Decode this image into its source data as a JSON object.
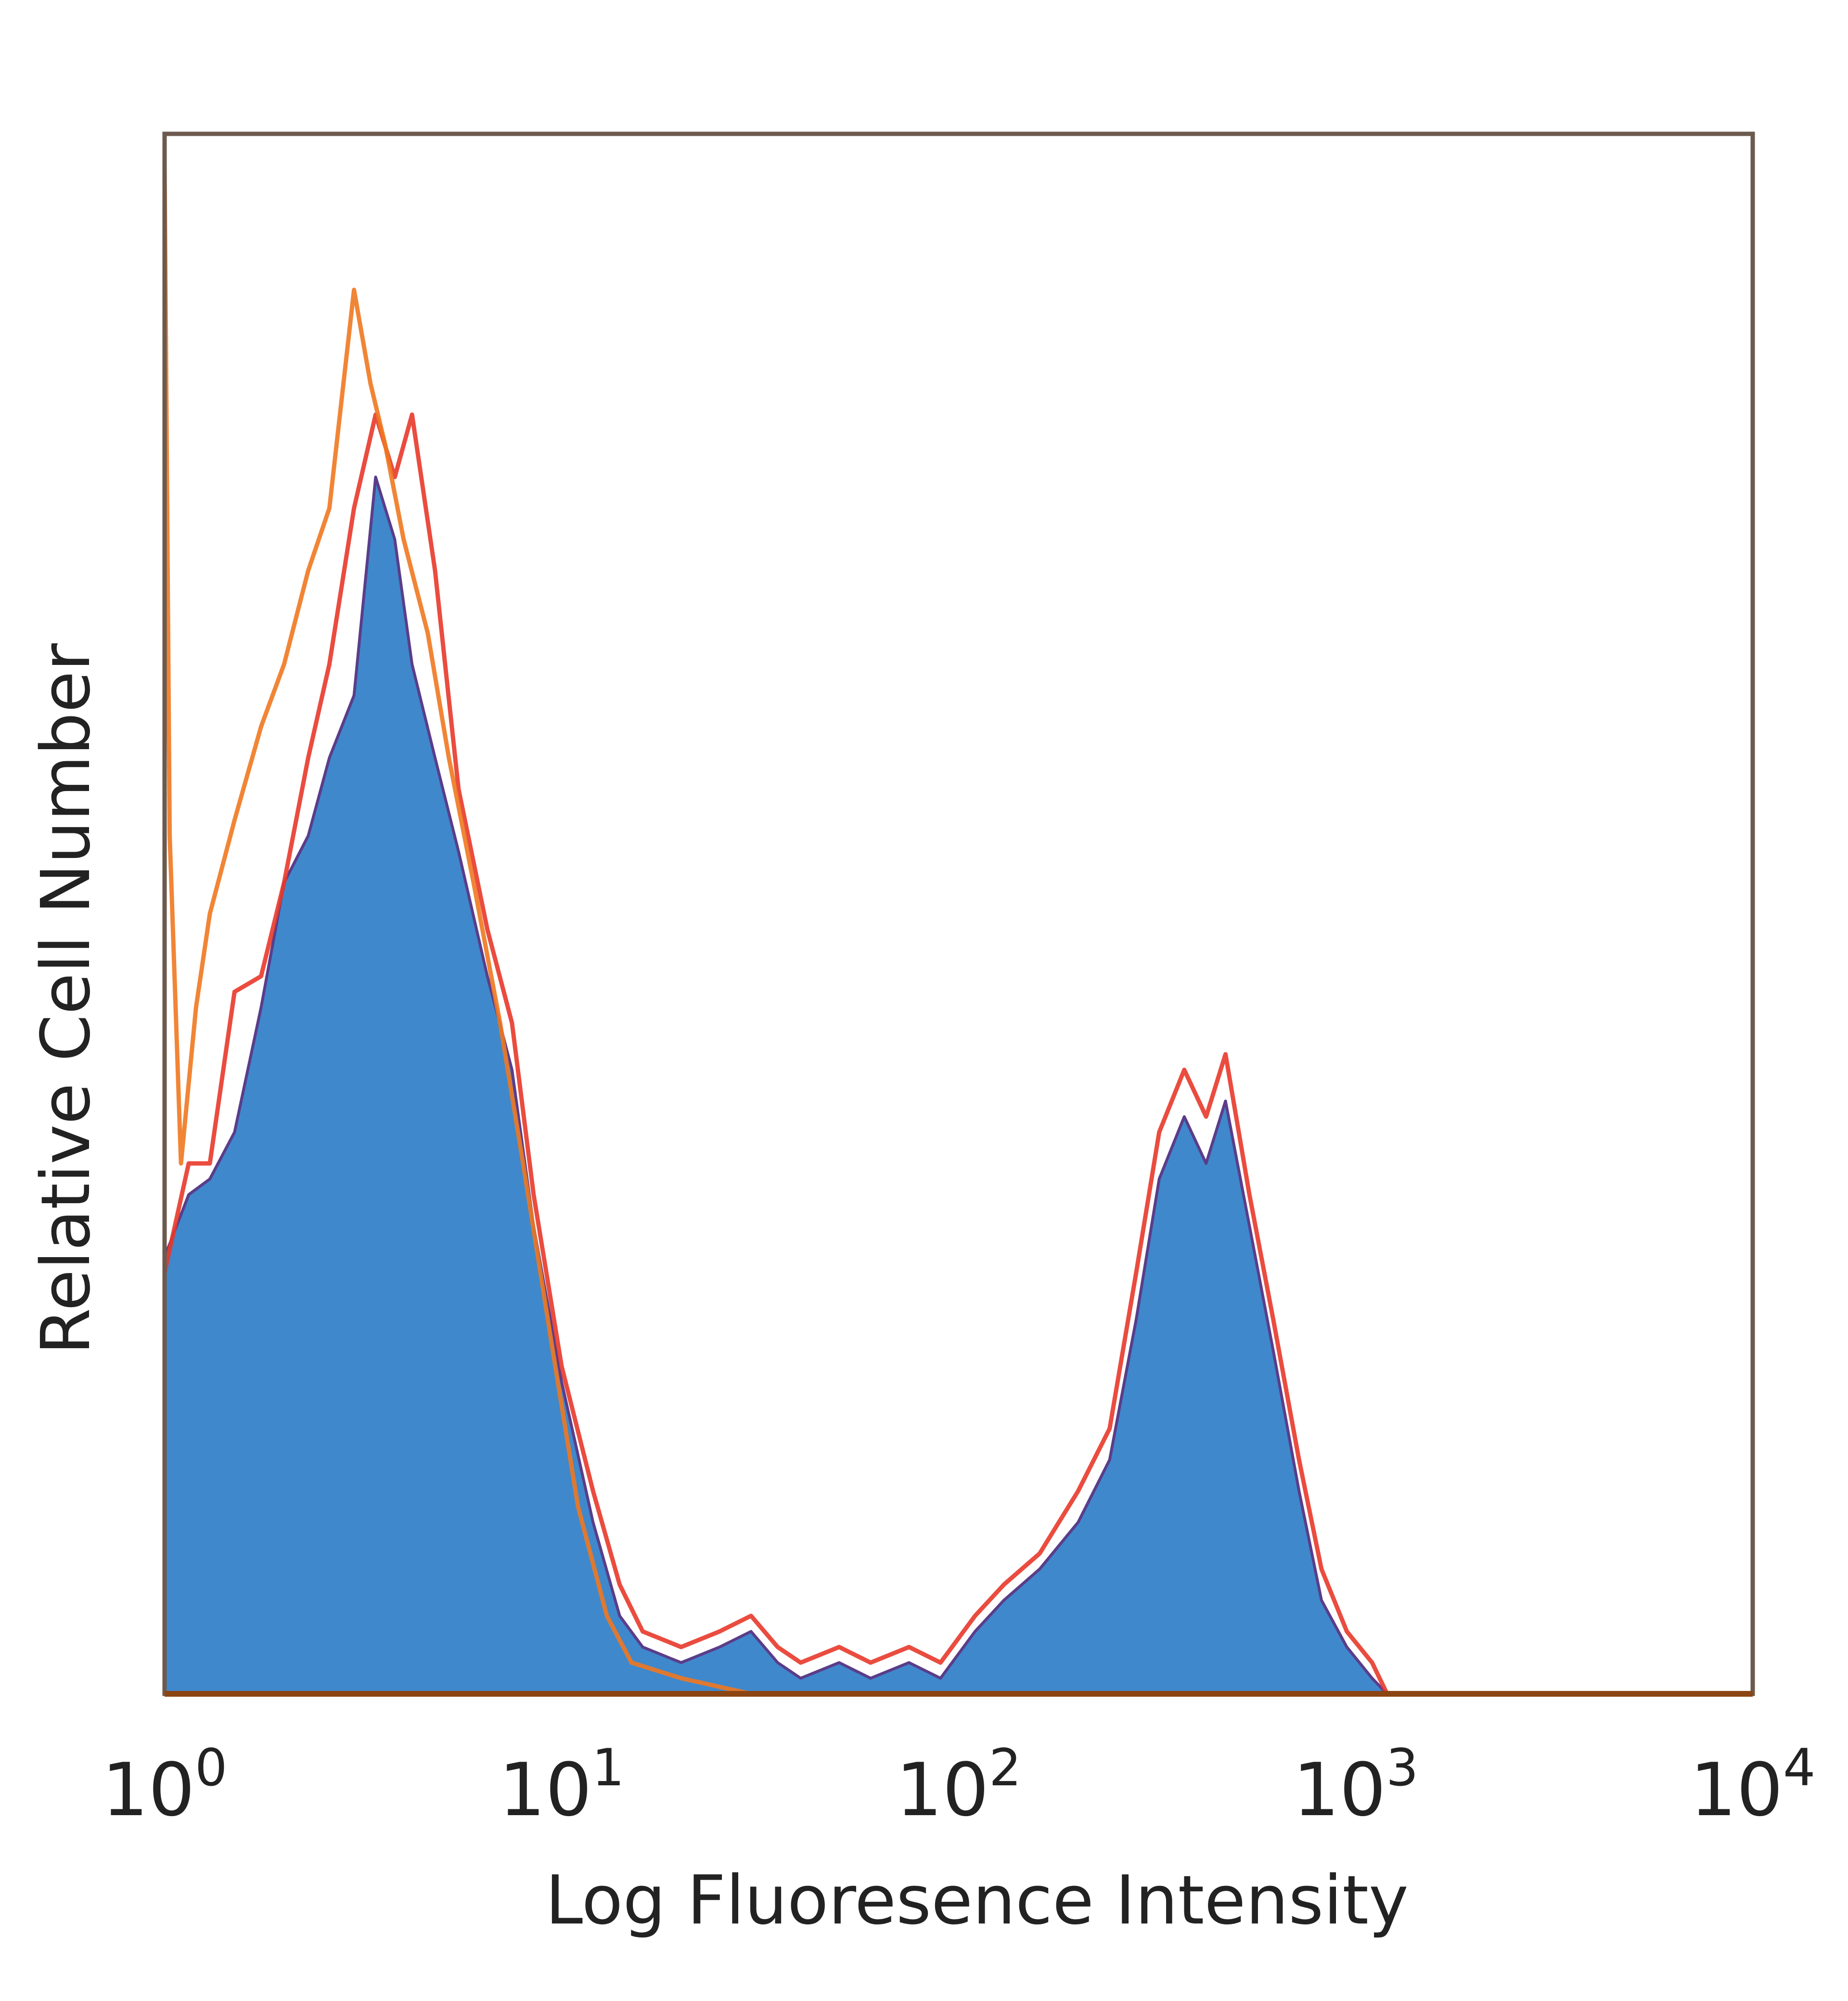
{
  "chart_data": {
    "type": "area",
    "title": "",
    "xlabel": "Log Fluoresence Intensity",
    "ylabel": "Relative Cell Number",
    "x_scale": "log",
    "xlim": [
      1,
      10000
    ],
    "ylim": [
      0,
      100
    ],
    "grid": false,
    "legend": "none",
    "x_ticks": [
      {
        "base": "10",
        "exp": "0"
      },
      {
        "base": "10",
        "exp": "1"
      },
      {
        "base": "10",
        "exp": "2"
      },
      {
        "base": "10",
        "exp": "3"
      },
      {
        "base": "10",
        "exp": "4"
      }
    ],
    "colors": {
      "frame": "#6b5a4e",
      "baseline": "#8b4513"
    },
    "series": [
      {
        "style": "filled",
        "color": "#3f88cc",
        "outline": "#5a3d8a",
        "points": [
          [
            1.0,
            28
          ],
          [
            1.15,
            32
          ],
          [
            1.3,
            33
          ],
          [
            1.5,
            36
          ],
          [
            1.75,
            44
          ],
          [
            2.0,
            52
          ],
          [
            2.3,
            55
          ],
          [
            2.6,
            60
          ],
          [
            3.0,
            64
          ],
          [
            3.4,
            78
          ],
          [
            3.8,
            74
          ],
          [
            4.2,
            66
          ],
          [
            4.8,
            60
          ],
          [
            5.5,
            54
          ],
          [
            6.5,
            46
          ],
          [
            7.5,
            40
          ],
          [
            8.5,
            30
          ],
          [
            10.0,
            20
          ],
          [
            12.0,
            11
          ],
          [
            14.0,
            5
          ],
          [
            16.0,
            3
          ],
          [
            20.0,
            2
          ],
          [
            25.0,
            3
          ],
          [
            30.0,
            4
          ],
          [
            35.0,
            2
          ],
          [
            40.0,
            1
          ],
          [
            50.0,
            2
          ],
          [
            60.0,
            1
          ],
          [
            75.0,
            2
          ],
          [
            90.0,
            1
          ],
          [
            110.0,
            4
          ],
          [
            130.0,
            6
          ],
          [
            160.0,
            8
          ],
          [
            200.0,
            11
          ],
          [
            240.0,
            15
          ],
          [
            280.0,
            24
          ],
          [
            320.0,
            33
          ],
          [
            370.0,
            37
          ],
          [
            420.0,
            34
          ],
          [
            470.0,
            38
          ],
          [
            540.0,
            30
          ],
          [
            620.0,
            22
          ],
          [
            720.0,
            13
          ],
          [
            820.0,
            6
          ],
          [
            950.0,
            3
          ],
          [
            1100.0,
            1
          ],
          [
            1200.0,
            0
          ]
        ]
      },
      {
        "style": "line",
        "color": "#e8382a",
        "points": [
          [
            1.0,
            27
          ],
          [
            1.15,
            34
          ],
          [
            1.3,
            34
          ],
          [
            1.5,
            45
          ],
          [
            1.75,
            46
          ],
          [
            2.0,
            52
          ],
          [
            2.3,
            60
          ],
          [
            2.6,
            66
          ],
          [
            3.0,
            76
          ],
          [
            3.4,
            82
          ],
          [
            3.8,
            78
          ],
          [
            4.2,
            82
          ],
          [
            4.8,
            72
          ],
          [
            5.5,
            58
          ],
          [
            6.5,
            49
          ],
          [
            7.5,
            43
          ],
          [
            8.5,
            32
          ],
          [
            10.0,
            21
          ],
          [
            12.0,
            13
          ],
          [
            14.0,
            7
          ],
          [
            16.0,
            4
          ],
          [
            20.0,
            3
          ],
          [
            25.0,
            4
          ],
          [
            30.0,
            5
          ],
          [
            35.0,
            3
          ],
          [
            40.0,
            2
          ],
          [
            50.0,
            3
          ],
          [
            60.0,
            2
          ],
          [
            75.0,
            3
          ],
          [
            90.0,
            2
          ],
          [
            110.0,
            5
          ],
          [
            130.0,
            7
          ],
          [
            160.0,
            9
          ],
          [
            200.0,
            13
          ],
          [
            240.0,
            17
          ],
          [
            280.0,
            27
          ],
          [
            320.0,
            36
          ],
          [
            370.0,
            40
          ],
          [
            420.0,
            37
          ],
          [
            470.0,
            41
          ],
          [
            540.0,
            32
          ],
          [
            620.0,
            24
          ],
          [
            720.0,
            15
          ],
          [
            820.0,
            8
          ],
          [
            950.0,
            4
          ],
          [
            1100.0,
            2
          ],
          [
            1200.0,
            0
          ]
        ]
      },
      {
        "style": "line",
        "color": "#f07820",
        "points": [
          [
            1.0,
            98
          ],
          [
            1.03,
            55
          ],
          [
            1.1,
            34
          ],
          [
            1.2,
            44
          ],
          [
            1.3,
            50
          ],
          [
            1.5,
            56
          ],
          [
            1.75,
            62
          ],
          [
            2.0,
            66
          ],
          [
            2.3,
            72
          ],
          [
            2.6,
            76
          ],
          [
            3.0,
            90
          ],
          [
            3.3,
            84
          ],
          [
            3.6,
            80
          ],
          [
            4.0,
            74
          ],
          [
            4.6,
            68
          ],
          [
            5.2,
            60
          ],
          [
            6.0,
            52
          ],
          [
            7.0,
            43
          ],
          [
            8.0,
            34
          ],
          [
            9.5,
            22
          ],
          [
            11.0,
            12
          ],
          [
            13.0,
            5
          ],
          [
            15.0,
            2
          ],
          [
            20.0,
            1
          ],
          [
            30.0,
            0
          ],
          [
            1000.0,
            0
          ],
          [
            10000.0,
            0
          ]
        ]
      }
    ]
  }
}
